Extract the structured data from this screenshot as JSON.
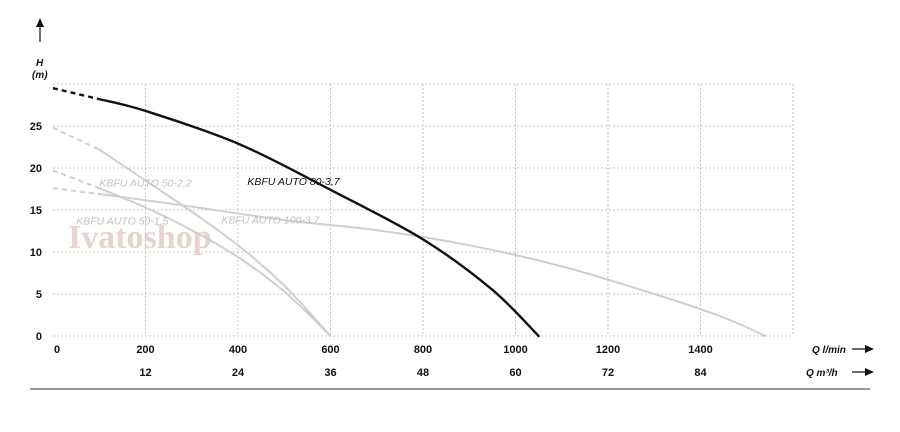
{
  "chart_data": {
    "type": "line",
    "ylabel": "H",
    "yunit": "(m)",
    "x_unit_label_lmin": "Q l/min",
    "x_unit_label_m3h": "Q m³/h",
    "x_ticks_lmin": [
      "0",
      "200",
      "400",
      "600",
      "800",
      "1000",
      "1200",
      "1400"
    ],
    "x_ticks_m3h": [
      "12",
      "24",
      "36",
      "48",
      "60",
      "72",
      "84"
    ],
    "y_ticks": [
      "0",
      "5",
      "10",
      "15",
      "20",
      "25"
    ],
    "xlim": [
      0,
      1600
    ],
    "ylim": [
      0,
      30
    ],
    "grid": true,
    "watermark": "Ivatoshop",
    "colors": {
      "highlight": "#111111",
      "other": "#cfcfcf"
    },
    "series": [
      {
        "name": "KBFU AUTO 80-3,7",
        "highlight": true,
        "dashed_until_x": 100,
        "x": [
          0,
          100,
          200,
          400,
          600,
          800,
          950,
          1050
        ],
        "y": [
          29.5,
          28.2,
          26.8,
          22.9,
          17.4,
          11.5,
          5.5,
          0
        ]
      },
      {
        "name": "KBFU AUTO 100-3,7",
        "highlight": false,
        "dashed_until_x": 100,
        "x": [
          0,
          100,
          300,
          500,
          700,
          900,
          1100,
          1300,
          1450,
          1540
        ],
        "y": [
          17.6,
          16.9,
          15.4,
          13.8,
          12.6,
          10.8,
          8.3,
          5.0,
          2.2,
          0
        ]
      },
      {
        "name": "KBFU AUTO 50-2,2",
        "highlight": false,
        "dashed_until_x": 100,
        "x": [
          0,
          100,
          200,
          300,
          400,
          500,
          600
        ],
        "y": [
          24.8,
          22.2,
          18.5,
          14.8,
          10.8,
          6.0,
          0
        ]
      },
      {
        "name": "KBFU AUTO 50-1,5",
        "highlight": false,
        "dashed_until_x": 100,
        "x": [
          0,
          100,
          200,
          300,
          400,
          500,
          600
        ],
        "y": [
          19.7,
          17.6,
          15.3,
          12.6,
          9.4,
          5.3,
          0
        ]
      }
    ],
    "labels": [
      {
        "text": "KBFU AUTO 80-3,7",
        "at_x": 520,
        "at_y": 18.0
      },
      {
        "text": "KBFU AUTO 50-2,2",
        "at_x": 200,
        "at_y": 17.8
      },
      {
        "text": "KBFU AUTO 100-3,7",
        "at_x": 470,
        "at_y": 13.4
      },
      {
        "text": "KBFU AUTO 50-1,5",
        "at_x": 150,
        "at_y": 13.3
      }
    ]
  }
}
